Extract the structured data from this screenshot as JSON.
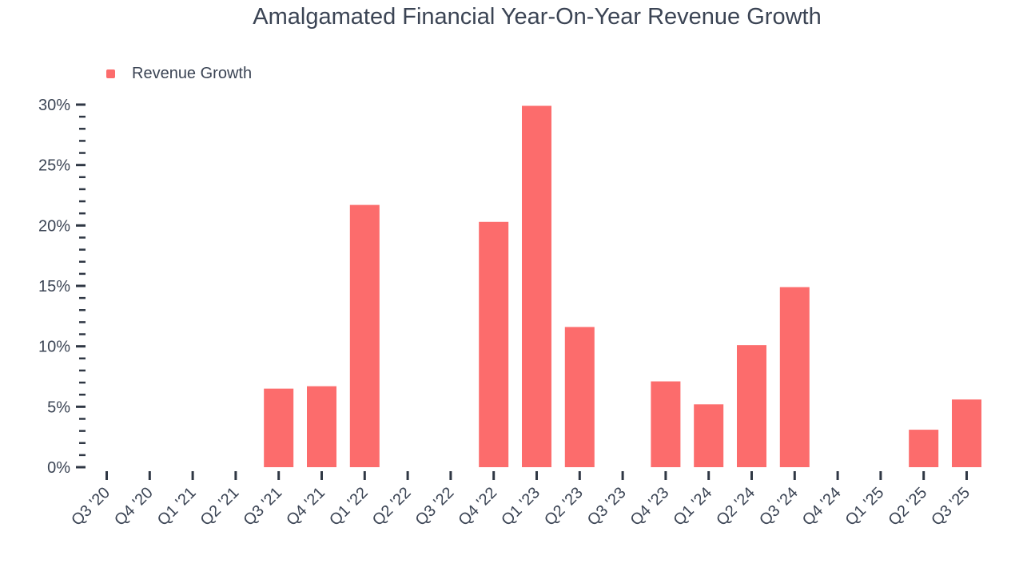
{
  "chart_data": {
    "type": "bar",
    "title": "Amalgamated Financial Year-On-Year Revenue Growth",
    "xlabel": "",
    "ylabel": "",
    "categories": [
      "Q3 '20",
      "Q4 '20",
      "Q1 '21",
      "Q2 '21",
      "Q3 '21",
      "Q4 '21",
      "Q1 '22",
      "Q2 '22",
      "Q3 '22",
      "Q4 '22",
      "Q1 '23",
      "Q2 '23",
      "Q3 '23",
      "Q4 '23",
      "Q1 '24",
      "Q2 '24",
      "Q3 '24",
      "Q4 '24",
      "Q1 '25",
      "Q2 '25",
      "Q3 '25"
    ],
    "series": [
      {
        "name": "Revenue Growth",
        "color": "#fc6c6c",
        "values": [
          null,
          null,
          null,
          null,
          6.5,
          6.7,
          21.7,
          null,
          null,
          20.3,
          29.9,
          11.6,
          null,
          7.1,
          5.2,
          10.1,
          14.9,
          null,
          null,
          3.1,
          5.6
        ]
      }
    ],
    "ylim": [
      0,
      30
    ],
    "y_major_step": 5,
    "y_minor_step": 1,
    "y_major_tick_labels": [
      "0%",
      "5%",
      "10%",
      "15%",
      "20%",
      "25%",
      "30%"
    ],
    "y_unit": "%",
    "grid": false,
    "legend_position": "top-left",
    "axis_text_color": "#3b4454",
    "tick_color": "#2f3744"
  },
  "legend": {
    "items": [
      {
        "label": "Revenue Growth",
        "color": "#fc6c6c"
      }
    ]
  }
}
